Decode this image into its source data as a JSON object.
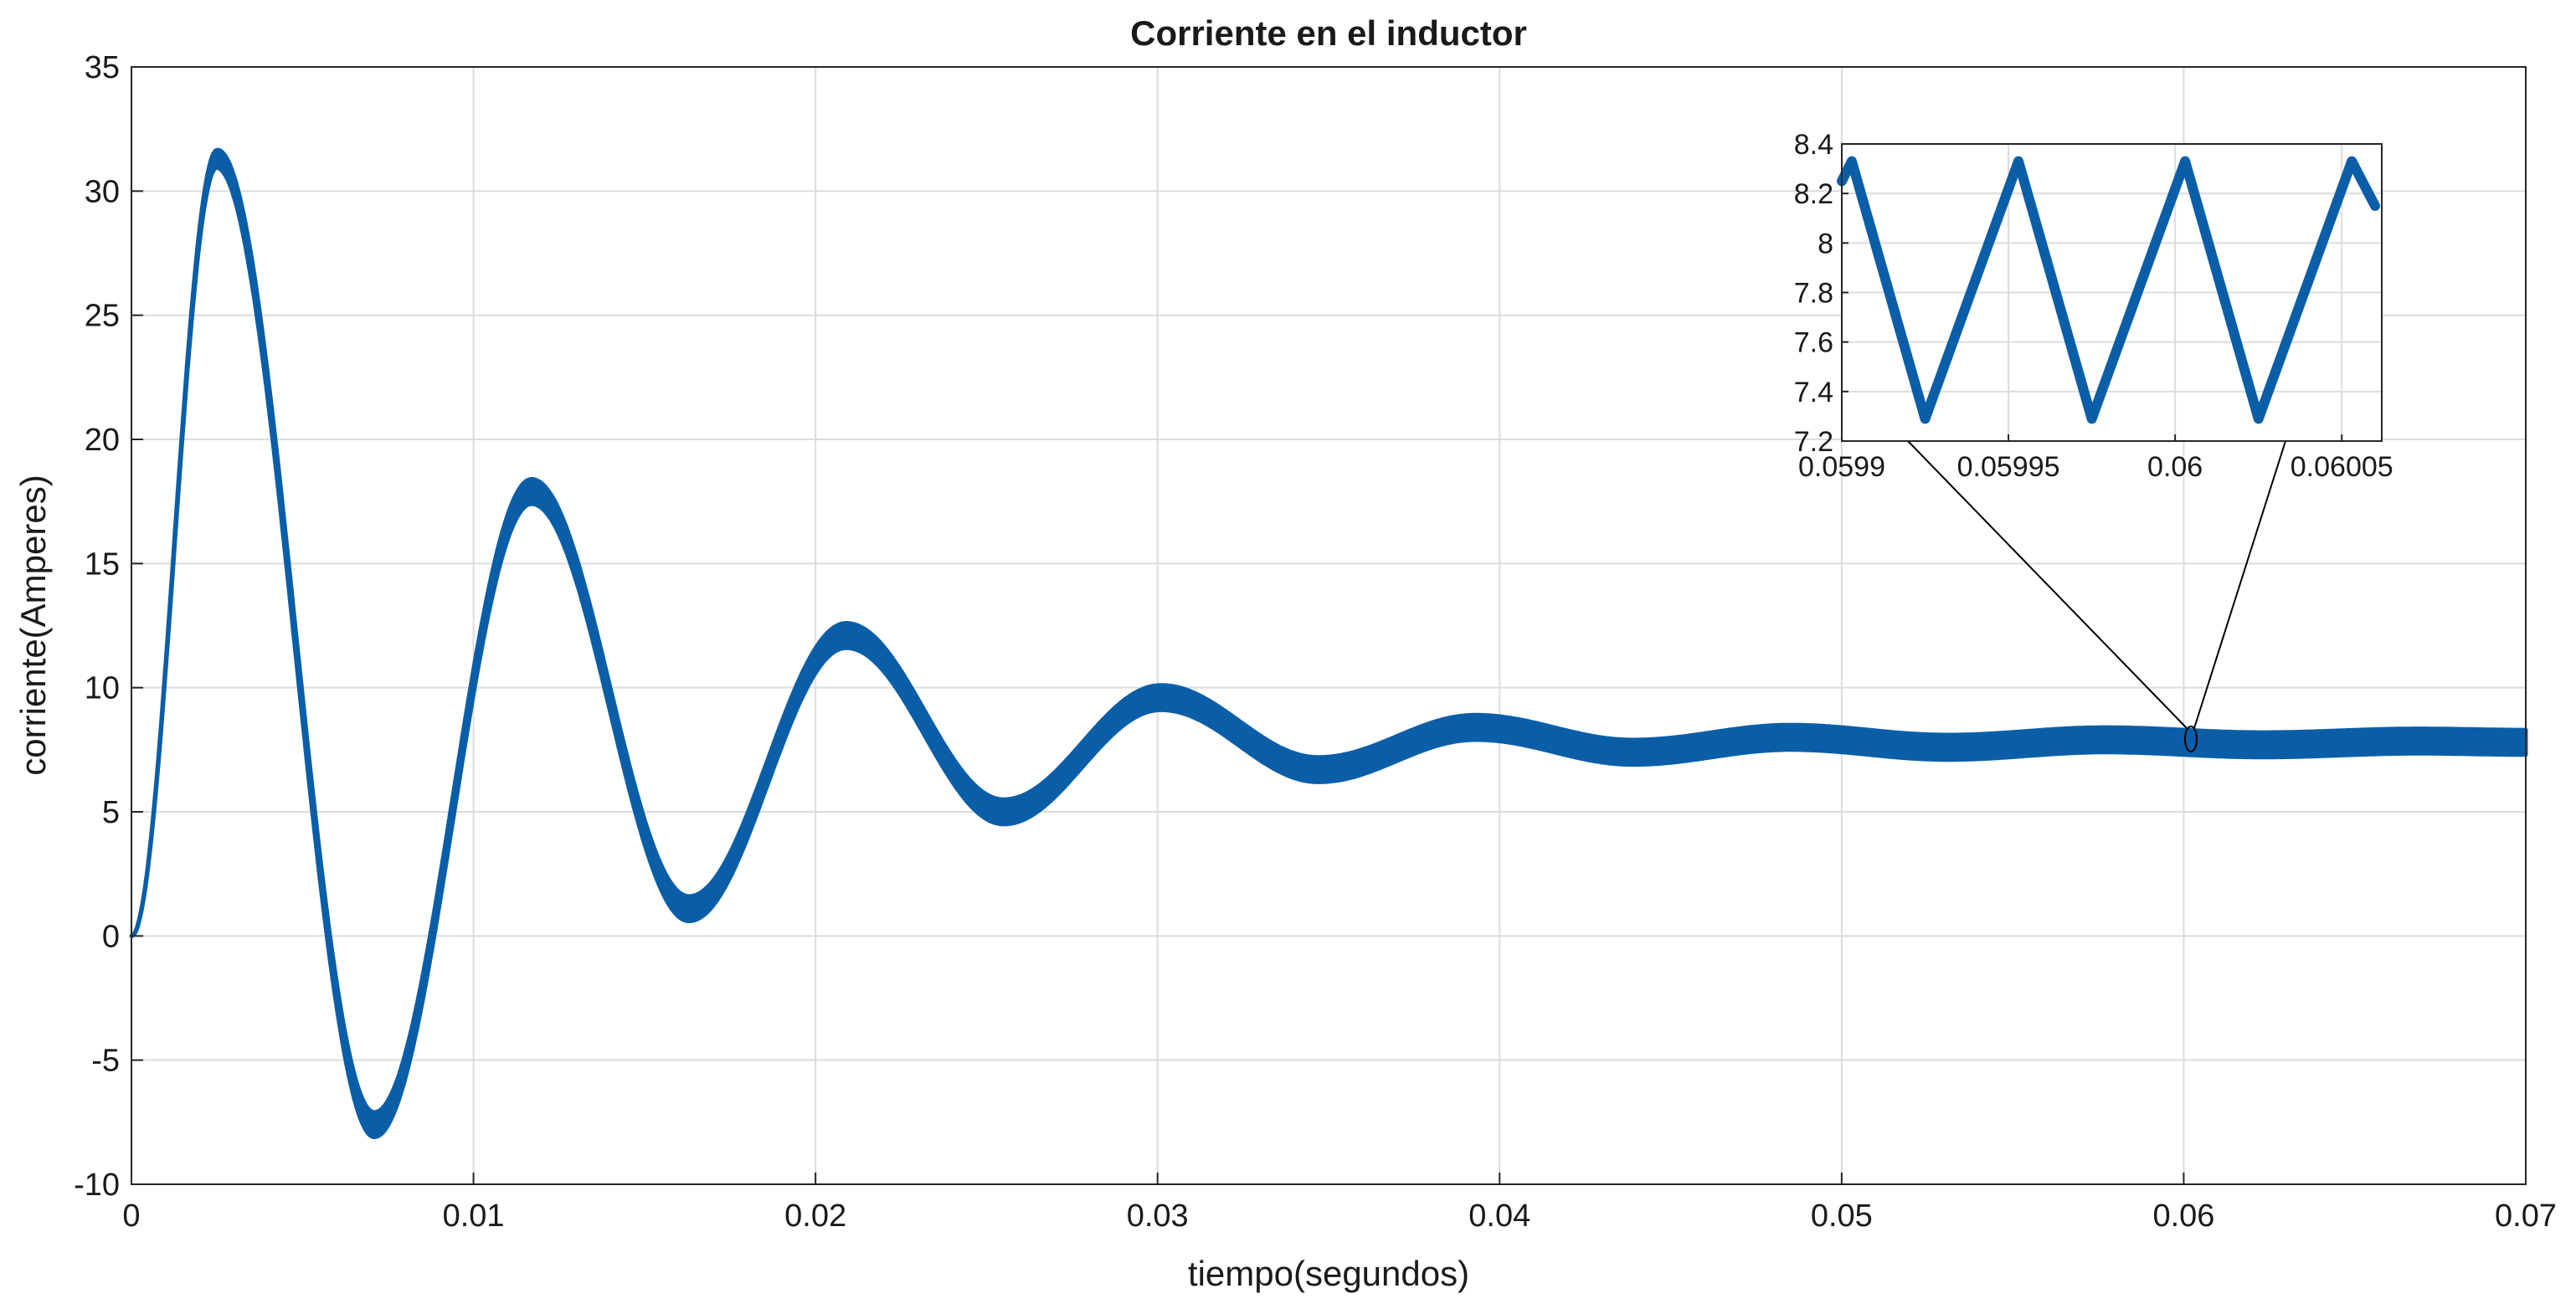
{
  "chart_data": [
    {
      "type": "line",
      "title": "Corriente en el inductor",
      "xlabel": "tiempo(segundos)",
      "ylabel": "corriente(Amperes)",
      "xlim": [
        0,
        0.07
      ],
      "ylim": [
        -10,
        35
      ],
      "grid": true,
      "x_ticks": [
        0,
        0.01,
        0.02,
        0.03,
        0.04,
        0.05,
        0.06,
        0.07
      ],
      "x_tick_labels": [
        "0",
        "0.01",
        "0.02",
        "0.03",
        "0.04",
        "0.05",
        "0.06",
        "0.07"
      ],
      "y_ticks": [
        -10,
        -5,
        0,
        5,
        10,
        15,
        20,
        25,
        30,
        35
      ],
      "y_tick_labels": [
        "-10",
        "-5",
        "0",
        "5",
        "10",
        "15",
        "20",
        "25",
        "30",
        "35"
      ],
      "line_color": "#0a5ea8",
      "series": [
        {
          "x": [
            0,
            0.0025,
            0.0071,
            0.0117,
            0.0163,
            0.0209,
            0.0255,
            0.0301,
            0.0347,
            0.0393,
            0.0439,
            0.0485,
            0.0531,
            0.0577,
            0.0623,
            0.0669,
            0.07
          ],
          "y": [
            0,
            31.3,
            -7.6,
            17.9,
            1.1,
            12.1,
            5.0,
            9.6,
            6.7,
            8.4,
            7.4,
            8.0,
            7.6,
            7.9,
            7.7,
            7.85,
            7.8
          ],
          "ripple_amplitude": 0.5
        }
      ]
    },
    {
      "type": "line",
      "inset": true,
      "xlim": [
        0.0599,
        0.060062
      ],
      "ylim": [
        7.2,
        8.4
      ],
      "grid": true,
      "x_ticks": [
        0.0599,
        0.05995,
        0.06,
        0.06005
      ],
      "x_tick_labels": [
        "0.0599",
        "0.05995",
        "0.06",
        "0.06005"
      ],
      "y_ticks": [
        7.2,
        7.4,
        7.6,
        7.8,
        8.0,
        8.2,
        8.4
      ],
      "y_tick_labels": [
        "7.2",
        "7.4",
        "7.6",
        "7.8",
        "8",
        "8.2",
        "8.4"
      ],
      "line_color": "#0a5ea8",
      "series": [
        {
          "x": [
            0.0599,
            0.059903,
            0.059925,
            0.059953,
            0.059975,
            0.060003,
            0.060025,
            0.060053,
            0.06006
          ],
          "y": [
            8.25,
            8.33,
            7.29,
            8.33,
            7.29,
            8.33,
            7.29,
            8.33,
            8.15
          ]
        }
      ]
    }
  ]
}
